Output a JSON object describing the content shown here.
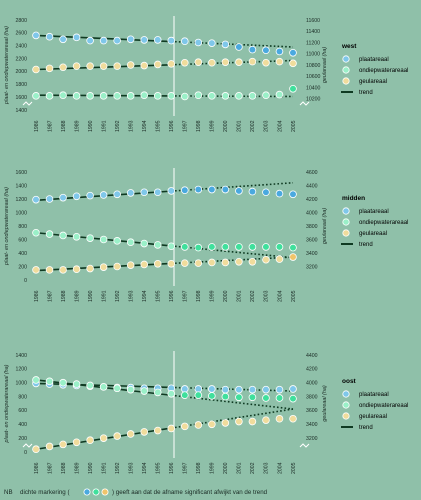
{
  "note": {
    "prefix": "NB",
    "before": "dichte markering (",
    "after": ") geeft aan dat de afname significant afwijkt van de trend"
  },
  "colors": {
    "background": "#8fc0a9",
    "plaat": "#7fc7ea",
    "plaat_dense": "#4aa9df",
    "ondiep": "#9af0c8",
    "ondiep_dense": "#3fe09c",
    "geul": "#f0dc9c",
    "geul_dense": "#f0c46a",
    "trend": "#0f3a22",
    "divider": "#ffffff"
  },
  "chart_data": [
    {
      "type": "scatter",
      "title": "west",
      "years": [
        1986,
        1987,
        1988,
        1989,
        1990,
        1991,
        1992,
        1993,
        1994,
        1995,
        1996,
        1997,
        1998,
        1999,
        2000,
        2001,
        2002,
        2003,
        2004,
        2005
      ],
      "ylabel_left": "plaat- en ondiepwaterareaal (ha)",
      "ylabel_right": "geulareaal (ha)",
      "left_ylim": [
        1400,
        2800
      ],
      "left_ticks": [
        1400,
        1600,
        1800,
        2000,
        2200,
        2400,
        2600,
        2800
      ],
      "right_ylim": [
        10000,
        11600
      ],
      "right_ticks": [
        10200,
        10400,
        10600,
        10800,
        11000,
        11200,
        11400,
        11600
      ],
      "axis_break": true,
      "legend": [
        "plaatareaal",
        "ondiepwaterareaal",
        "geulareaal",
        "trend"
      ],
      "series": [
        {
          "name": "plaatareaal",
          "axis": "left",
          "color_key": "plaat",
          "values": [
            2560,
            2540,
            2500,
            2530,
            2480,
            2480,
            2480,
            2500,
            2490,
            2490,
            2480,
            2470,
            2450,
            2440,
            2420,
            2380,
            2340,
            2330,
            2310,
            2290
          ],
          "dense": [
            false,
            false,
            false,
            false,
            false,
            false,
            false,
            false,
            false,
            false,
            false,
            false,
            false,
            false,
            false,
            true,
            true,
            true,
            true,
            true
          ],
          "trend": [
            2560,
            2380
          ]
        },
        {
          "name": "ondiepwaterareaal",
          "axis": "left",
          "color_key": "ondiep",
          "values": [
            1620,
            1620,
            1630,
            1620,
            1620,
            1620,
            1620,
            1620,
            1630,
            1620,
            1620,
            1610,
            1630,
            1620,
            1620,
            1620,
            1620,
            1630,
            1640,
            1730
          ],
          "dense": [
            false,
            false,
            false,
            false,
            false,
            false,
            false,
            false,
            false,
            false,
            false,
            false,
            false,
            false,
            false,
            false,
            false,
            false,
            false,
            true
          ],
          "trend": [
            1630,
            1610
          ]
        },
        {
          "name": "geulareaal",
          "axis": "right",
          "color_key": "geul",
          "values": [
            10720,
            10740,
            10760,
            10780,
            10780,
            10780,
            10780,
            10800,
            10790,
            10810,
            10820,
            10840,
            10850,
            10840,
            10850,
            10850,
            10860,
            10840,
            10860,
            10830
          ],
          "dense": [
            false,
            false,
            false,
            false,
            false,
            false,
            false,
            false,
            false,
            false,
            false,
            false,
            false,
            false,
            false,
            false,
            false,
            false,
            false,
            false
          ],
          "trend": [
            10720,
            10880
          ]
        }
      ]
    },
    {
      "type": "scatter",
      "title": "midden",
      "years": [
        1986,
        1987,
        1988,
        1989,
        1990,
        1991,
        1992,
        1993,
        1994,
        1995,
        1996,
        1997,
        1998,
        1999,
        2000,
        2001,
        2002,
        2003,
        2004,
        2005
      ],
      "ylabel_left": "plaat- en ondiepwaterareaal (ha)",
      "ylabel_right": "geulareaal (ha)",
      "left_ylim": [
        0,
        1600
      ],
      "left_ticks": [
        0,
        200,
        400,
        600,
        800,
        1000,
        1200,
        1400,
        1600
      ],
      "right_ylim": [
        3000,
        4600
      ],
      "right_ticks": [
        3200,
        3400,
        3600,
        3800,
        4000,
        4200,
        4400,
        4600
      ],
      "axis_break": false,
      "legend": [
        "plaatareaal",
        "ondiepwaterareaal",
        "geulareaal",
        "trend"
      ],
      "series": [
        {
          "name": "plaatareaal",
          "axis": "left",
          "color_key": "plaat",
          "values": [
            1190,
            1200,
            1220,
            1240,
            1250,
            1260,
            1270,
            1290,
            1300,
            1300,
            1320,
            1330,
            1340,
            1340,
            1340,
            1320,
            1310,
            1300,
            1280,
            1270
          ],
          "dense": [
            false,
            false,
            false,
            false,
            false,
            false,
            false,
            false,
            false,
            false,
            false,
            true,
            true,
            true,
            true,
            true,
            true,
            true,
            true,
            true
          ],
          "trend": [
            1180,
            1440
          ]
        },
        {
          "name": "ondiepwaterareaal",
          "axis": "left",
          "color_key": "ondiep",
          "values": [
            700,
            680,
            660,
            640,
            620,
            600,
            580,
            560,
            540,
            520,
            500,
            490,
            480,
            490,
            490,
            490,
            490,
            490,
            490,
            480
          ],
          "dense": [
            false,
            false,
            false,
            false,
            false,
            false,
            false,
            false,
            false,
            false,
            false,
            true,
            true,
            true,
            true,
            true,
            true,
            true,
            true,
            true
          ],
          "trend": [
            700,
            330
          ]
        },
        {
          "name": "geulareaal",
          "axis": "right",
          "color_key": "geul",
          "values": [
            3150,
            3150,
            3150,
            3160,
            3170,
            3190,
            3200,
            3220,
            3230,
            3240,
            3240,
            3250,
            3250,
            3260,
            3260,
            3270,
            3270,
            3300,
            3310,
            3340
          ],
          "dense": [
            false,
            false,
            false,
            false,
            false,
            false,
            false,
            false,
            false,
            false,
            false,
            false,
            false,
            false,
            false,
            false,
            false,
            false,
            false,
            true
          ],
          "trend": [
            3140,
            3340
          ]
        }
      ]
    },
    {
      "type": "scatter",
      "title": "oost",
      "years": [
        1986,
        1987,
        1988,
        1989,
        1990,
        1991,
        1992,
        1993,
        1994,
        1995,
        1996,
        1997,
        1998,
        1999,
        2000,
        2001,
        2002,
        2003,
        2004,
        2005
      ],
      "ylabel_left": "plaat- en ondiepwaterareaal (ha)",
      "ylabel_right": "geulareaal (ha)",
      "left_ylim": [
        0,
        1400
      ],
      "left_ticks": [
        0,
        200,
        400,
        600,
        800,
        1000,
        1200,
        1400
      ],
      "right_ylim": [
        3000,
        4400
      ],
      "right_ticks": [
        3200,
        3400,
        3600,
        3800,
        4000,
        4200,
        4400
      ],
      "axis_break": true,
      "legend": [
        "plaatareaal",
        "ondiepwaterareaal",
        "geulareaal",
        "trend"
      ],
      "series": [
        {
          "name": "plaatareaal",
          "axis": "left",
          "color_key": "plaat",
          "values": [
            990,
            980,
            970,
            960,
            950,
            940,
            930,
            930,
            920,
            920,
            920,
            910,
            910,
            910,
            900,
            900,
            900,
            900,
            900,
            910
          ],
          "dense": [
            false,
            false,
            false,
            false,
            false,
            false,
            false,
            false,
            false,
            false,
            false,
            false,
            false,
            false,
            false,
            false,
            false,
            false,
            false,
            false
          ],
          "trend": [
            990,
            880
          ]
        },
        {
          "name": "ondiepwaterareaal",
          "axis": "left",
          "color_key": "ondiep",
          "values": [
            1040,
            1020,
            1000,
            980,
            960,
            940,
            920,
            900,
            880,
            860,
            840,
            820,
            820,
            810,
            800,
            790,
            790,
            780,
            780,
            770
          ],
          "dense": [
            false,
            false,
            false,
            false,
            false,
            false,
            false,
            false,
            false,
            false,
            false,
            true,
            true,
            true,
            true,
            true,
            true,
            true,
            true,
            true
          ],
          "trend": [
            1040,
            620
          ]
        },
        {
          "name": "geulareaal",
          "axis": "right",
          "color_key": "geul",
          "values": [
            3040,
            3080,
            3110,
            3140,
            3170,
            3200,
            3230,
            3260,
            3290,
            3310,
            3340,
            3370,
            3390,
            3400,
            3420,
            3440,
            3440,
            3460,
            3480,
            3480
          ],
          "dense": [
            false,
            false,
            false,
            false,
            false,
            false,
            false,
            false,
            false,
            false,
            false,
            false,
            false,
            false,
            false,
            false,
            false,
            false,
            false,
            false
          ],
          "trend": [
            3040,
            3620
          ]
        }
      ]
    }
  ]
}
